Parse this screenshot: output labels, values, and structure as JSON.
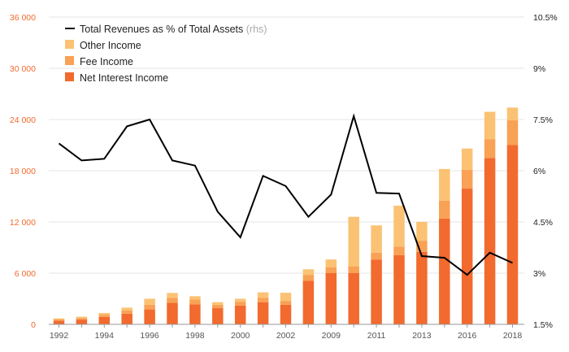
{
  "chart_data": {
    "type": "bar",
    "categories": [
      "1992",
      "1993",
      "1994",
      "1995",
      "1996",
      "1997",
      "1998",
      "1999",
      "2000",
      "2001",
      "2002",
      "2003",
      "2009",
      "2010",
      "2011",
      "2012",
      "2013",
      "2014",
      "2016",
      "2017",
      "2018"
    ],
    "x_tick_labels": [
      "1992",
      "1994",
      "1996",
      "1998",
      "2000",
      "2002",
      "2009",
      "2011",
      "2013",
      "2016",
      "2018"
    ],
    "x_tick_category_index": [
      0,
      2,
      4,
      6,
      8,
      10,
      12,
      14,
      16,
      18,
      20
    ],
    "stacked": true,
    "series": [
      {
        "name": "Net Interest Income",
        "color": "#f26a2e",
        "values": [
          420,
          560,
          880,
          1250,
          1750,
          2520,
          2350,
          1900,
          2200,
          2600,
          2300,
          5100,
          6000,
          6000,
          7600,
          8100,
          8500,
          12400,
          15900,
          19500,
          21000
        ]
      },
      {
        "name": "Fee Income",
        "color": "#f9a155",
        "values": [
          150,
          180,
          250,
          380,
          550,
          600,
          550,
          400,
          450,
          500,
          450,
          700,
          700,
          800,
          800,
          1000,
          1300,
          2100,
          2200,
          2200,
          2900
        ]
      },
      {
        "name": "Other Income",
        "color": "#fbc274",
        "values": [
          130,
          160,
          200,
          330,
          700,
          560,
          400,
          300,
          350,
          650,
          950,
          650,
          900,
          5800,
          3200,
          4800,
          2200,
          3700,
          2500,
          3200,
          1500
        ]
      }
    ],
    "line_series": {
      "name": "Total Revenues as % of Total Assets",
      "rhs_tag": "(rhs)",
      "color": "#000000",
      "values": [
        6.8,
        6.3,
        6.35,
        7.3,
        7.5,
        6.3,
        6.15,
        4.8,
        4.05,
        5.85,
        5.55,
        4.65,
        5.3,
        7.6,
        5.35,
        5.33,
        3.5,
        3.45,
        2.95,
        3.6,
        3.3
      ]
    },
    "y_left": {
      "min": 0,
      "max": 36000,
      "ticks": [
        0,
        6000,
        12000,
        18000,
        24000,
        30000,
        36000
      ],
      "tick_labels": [
        "0",
        "6 000",
        "12 000",
        "18 000",
        "24 000",
        "30 000",
        "36 000"
      ],
      "color": "#f26a2e"
    },
    "y_right": {
      "min": 1.5,
      "max": 10.5,
      "ticks": [
        1.5,
        3,
        4.5,
        6,
        7.5,
        9,
        10.5
      ],
      "tick_labels": [
        "1.5%",
        "3%",
        "4.5%",
        "6%",
        "7.5%",
        "9%",
        "10.5%"
      ]
    },
    "grid": true,
    "legend_position": "top-left"
  },
  "colors": {
    "grid": "#e6e6e6",
    "axis_text": "#555555",
    "rhs_tag": "#aaaaaa"
  }
}
